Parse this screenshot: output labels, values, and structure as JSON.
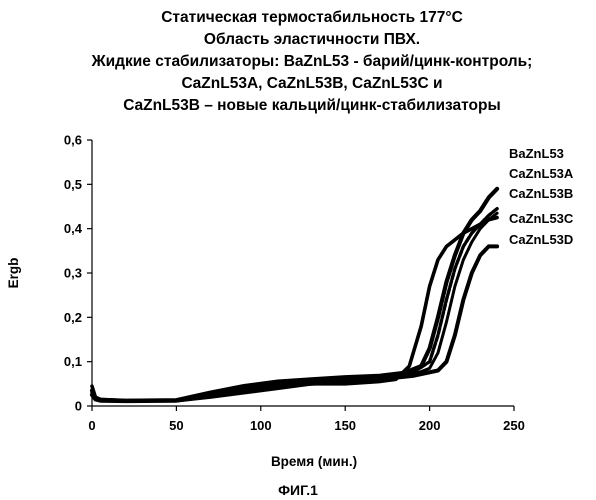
{
  "chart_data": {
    "type": "line",
    "title": [
      "Статическая термостабильность 177°С",
      "Область эластичности ПВХ.",
      "Жидкие стабилизаторы: BaZnL53 - барий/цинк-контроль;",
      "CaZnL53A, CaZnL53B, CaZnL53C и",
      "CaZnL53B – новые кальций/цинк-стабилизаторы"
    ],
    "xlabel": "Время (мин.)",
    "ylabel": "Ergb",
    "xlim": [
      0,
      250
    ],
    "ylim": [
      0,
      0.6
    ],
    "xticks": [
      "0",
      "50",
      "100",
      "150",
      "200",
      "250"
    ],
    "yticks": [
      "0",
      "0,1",
      "0,2",
      "0,3",
      "0,4",
      "0,5",
      "0,6"
    ],
    "xtick_values": [
      0,
      50,
      100,
      150,
      200,
      250
    ],
    "ytick_values": [
      0,
      0.1,
      0.2,
      0.3,
      0.4,
      0.5,
      0.6
    ],
    "grid": false,
    "legend_position": "right",
    "legend": [
      "BaZnL53",
      "CaZnL53A",
      "CaZnL53B",
      "CaZnL53C",
      "CaZnL53D"
    ],
    "series": [
      {
        "name": "BaZnL53",
        "color": "#000000",
        "x": [
          0,
          2,
          5,
          20,
          50,
          70,
          90,
          110,
          130,
          150,
          170,
          180,
          188,
          195,
          200,
          205,
          210,
          215,
          220,
          225,
          230,
          235,
          240
        ],
        "y": [
          0.045,
          0.02,
          0.015,
          0.012,
          0.012,
          0.02,
          0.03,
          0.04,
          0.05,
          0.05,
          0.055,
          0.06,
          0.09,
          0.18,
          0.27,
          0.33,
          0.36,
          0.375,
          0.39,
          0.4,
          0.41,
          0.42,
          0.425
        ]
      },
      {
        "name": "CaZnL53A",
        "color": "#000000",
        "x": [
          0,
          2,
          5,
          20,
          50,
          70,
          90,
          110,
          130,
          150,
          170,
          185,
          195,
          200,
          205,
          210,
          215,
          220,
          225,
          230,
          235,
          240
        ],
        "y": [
          0.035,
          0.018,
          0.014,
          0.012,
          0.013,
          0.03,
          0.045,
          0.055,
          0.06,
          0.065,
          0.068,
          0.075,
          0.09,
          0.13,
          0.2,
          0.28,
          0.34,
          0.39,
          0.42,
          0.44,
          0.47,
          0.49
        ]
      },
      {
        "name": "CaZnL53B",
        "color": "#000000",
        "x": [
          0,
          2,
          5,
          20,
          50,
          70,
          90,
          110,
          130,
          150,
          170,
          190,
          200,
          205,
          210,
          215,
          220,
          225,
          230,
          235,
          240
        ],
        "y": [
          0.03,
          0.016,
          0.013,
          0.012,
          0.013,
          0.025,
          0.04,
          0.05,
          0.055,
          0.06,
          0.065,
          0.075,
          0.1,
          0.16,
          0.24,
          0.31,
          0.36,
          0.39,
          0.41,
          0.43,
          0.445
        ]
      },
      {
        "name": "CaZnL53C",
        "color": "#000000",
        "x": [
          0,
          2,
          5,
          20,
          50,
          70,
          90,
          110,
          130,
          150,
          170,
          190,
          200,
          205,
          210,
          215,
          220,
          225,
          230,
          235,
          240
        ],
        "y": [
          0.03,
          0.016,
          0.013,
          0.012,
          0.013,
          0.028,
          0.042,
          0.052,
          0.058,
          0.062,
          0.066,
          0.07,
          0.085,
          0.12,
          0.19,
          0.27,
          0.33,
          0.37,
          0.4,
          0.42,
          0.435
        ]
      },
      {
        "name": "CaZnL53D",
        "color": "#000000",
        "x": [
          0,
          2,
          5,
          20,
          50,
          70,
          90,
          110,
          130,
          150,
          170,
          190,
          205,
          210,
          215,
          220,
          225,
          230,
          235,
          240
        ],
        "y": [
          0.025,
          0.015,
          0.012,
          0.011,
          0.012,
          0.022,
          0.035,
          0.045,
          0.05,
          0.055,
          0.06,
          0.068,
          0.08,
          0.1,
          0.16,
          0.24,
          0.3,
          0.34,
          0.36,
          0.36
        ]
      }
    ]
  },
  "caption": "ФИГ.1"
}
